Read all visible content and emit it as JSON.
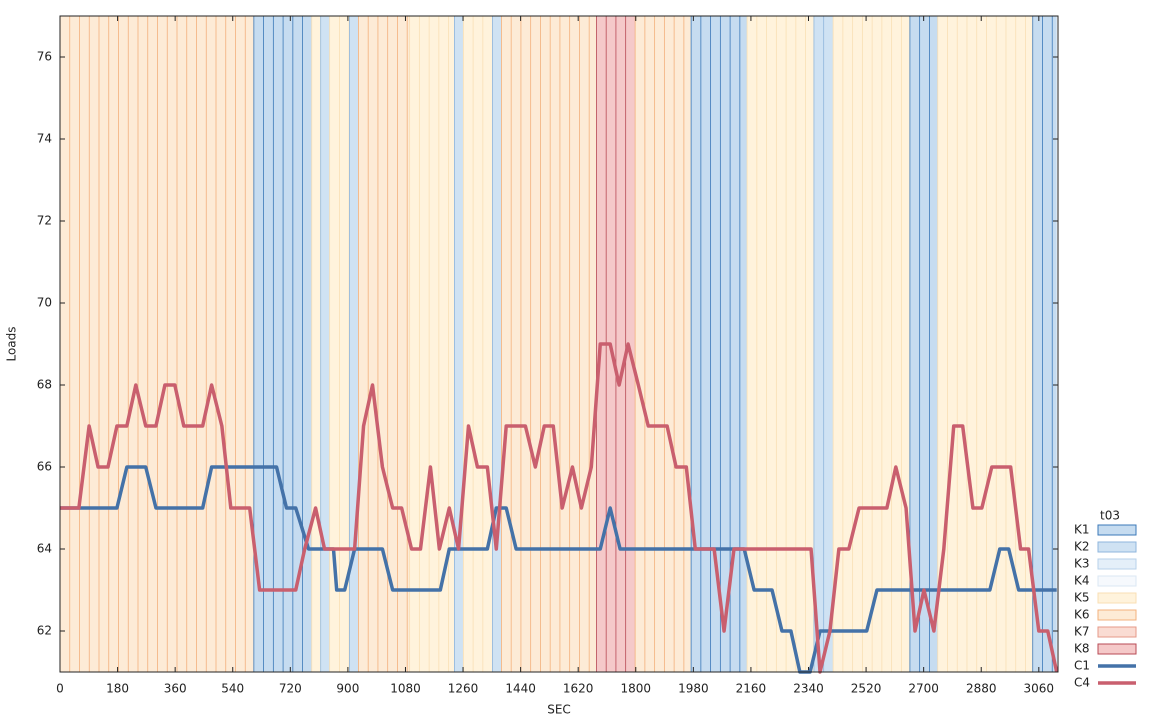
{
  "chart_data": {
    "type": "line",
    "xlabel": "SEC",
    "ylabel": "Loads",
    "legend_title": "t03",
    "legend": "right",
    "xlim": [
      0,
      3120
    ],
    "ylim": [
      61,
      77
    ],
    "xticks": [
      0,
      180,
      360,
      540,
      720,
      900,
      1080,
      1260,
      1440,
      1620,
      1800,
      1980,
      2160,
      2340,
      2520,
      2700,
      2880,
      3060
    ],
    "yticks": [
      62,
      64,
      66,
      68,
      70,
      72,
      74,
      76
    ],
    "regions": [
      {
        "name": "K1",
        "fill": "#c6dcf0",
        "stroke": "#3b78b8"
      },
      {
        "name": "K2",
        "fill": "#cfe2f3",
        "stroke": "#8fb6dc"
      },
      {
        "name": "K3",
        "fill": "#e4eff9",
        "stroke": "#b7d2ea"
      },
      {
        "name": "K4",
        "fill": "#f6f9fd",
        "stroke": "#dbe7f3"
      },
      {
        "name": "K5",
        "fill": "#fff3dc",
        "stroke": "#f9dfb4"
      },
      {
        "name": "K6",
        "fill": "#fdebd6",
        "stroke": "#f3b07c"
      },
      {
        "name": "K7",
        "fill": "#fadcd3",
        "stroke": "#e69a88"
      },
      {
        "name": "K8",
        "fill": "#f5c9c9",
        "stroke": "#b84a55"
      }
    ],
    "bands": [
      {
        "x0": 0,
        "x1": 606,
        "region": 5
      },
      {
        "x0": 606,
        "x1": 787,
        "region": 0
      },
      {
        "x0": 787,
        "x1": 815,
        "region": 4
      },
      {
        "x0": 815,
        "x1": 843,
        "region": 1
      },
      {
        "x0": 843,
        "x1": 905,
        "region": 4
      },
      {
        "x0": 905,
        "x1": 933,
        "region": 1
      },
      {
        "x0": 933,
        "x1": 1093,
        "region": 5
      },
      {
        "x0": 1093,
        "x1": 1233,
        "region": 4
      },
      {
        "x0": 1233,
        "x1": 1261,
        "region": 1
      },
      {
        "x0": 1261,
        "x1": 1352,
        "region": 4
      },
      {
        "x0": 1352,
        "x1": 1380,
        "region": 1
      },
      {
        "x0": 1380,
        "x1": 1677,
        "region": 5
      },
      {
        "x0": 1677,
        "x1": 1798,
        "region": 7
      },
      {
        "x0": 1798,
        "x1": 1973,
        "region": 5
      },
      {
        "x0": 1973,
        "x1": 2148,
        "region": 0
      },
      {
        "x0": 2148,
        "x1": 2357,
        "region": 4
      },
      {
        "x0": 2357,
        "x1": 2417,
        "region": 1
      },
      {
        "x0": 2417,
        "x1": 2657,
        "region": 4
      },
      {
        "x0": 2657,
        "x1": 2744,
        "region": 0
      },
      {
        "x0": 2744,
        "x1": 3041,
        "region": 4
      },
      {
        "x0": 3041,
        "x1": 3116,
        "region": 0
      }
    ],
    "series": [
      {
        "name": "C1",
        "color": "#4472a8",
        "x": [
          0,
          178,
          209,
          268,
          300,
          446,
          474,
          677,
          708,
          737,
          777,
          855,
          865,
          890,
          921,
          1008,
          1040,
          1189,
          1217,
          1336,
          1364,
          1395,
          1426,
          1689,
          1720,
          1751,
          2139,
          2170,
          2226,
          2257,
          2285,
          2313,
          2345,
          2376,
          2522,
          2554,
          2907,
          2938,
          2966,
          2997,
          3116
        ],
        "values": [
          65,
          65,
          66,
          66,
          65,
          65,
          66,
          66,
          65,
          65,
          64,
          64,
          63,
          63,
          64,
          64,
          63,
          63,
          64,
          64,
          65,
          65,
          64,
          64,
          65,
          64,
          64,
          63,
          63,
          62,
          62,
          61,
          61,
          62,
          62,
          63,
          63,
          64,
          64,
          63,
          63
        ]
      },
      {
        "name": "C4",
        "color": "#c95f6e",
        "x": [
          0,
          59,
          91,
          119,
          150,
          178,
          209,
          237,
          268,
          300,
          328,
          359,
          387,
          446,
          474,
          506,
          534,
          593,
          624,
          737,
          765,
          799,
          827,
          921,
          949,
          977,
          1008,
          1040,
          1068,
          1099,
          1127,
          1158,
          1186,
          1217,
          1246,
          1277,
          1305,
          1336,
          1364,
          1395,
          1455,
          1486,
          1514,
          1542,
          1570,
          1602,
          1630,
          1661,
          1689,
          1720,
          1748,
          1776,
          1808,
          1839,
          1898,
          1926,
          1958,
          1986,
          2045,
          2076,
          2107,
          2348,
          2376,
          2407,
          2435,
          2466,
          2498,
          2585,
          2613,
          2645,
          2673,
          2701,
          2732,
          2763,
          2794,
          2822,
          2854,
          2882,
          2913,
          2972,
          3003,
          3028,
          3060,
          3088,
          3116
        ],
        "values": [
          65,
          65,
          67,
          66,
          66,
          67,
          67,
          68,
          67,
          67,
          68,
          68,
          67,
          67,
          68,
          67,
          65,
          65,
          63,
          63,
          64,
          65,
          64,
          64,
          67,
          68,
          66,
          65,
          65,
          64,
          64,
          66,
          64,
          65,
          64,
          67,
          66,
          66,
          64,
          67,
          67,
          66,
          67,
          67,
          65,
          66,
          65,
          66,
          69,
          69,
          68,
          69,
          68,
          67,
          67,
          66,
          66,
          64,
          64,
          62,
          64,
          64,
          61,
          62,
          64,
          64,
          65,
          65,
          66,
          65,
          62,
          63,
          62,
          64,
          67,
          67,
          65,
          65,
          66,
          66,
          64,
          64,
          62,
          62,
          61
        ]
      }
    ]
  }
}
